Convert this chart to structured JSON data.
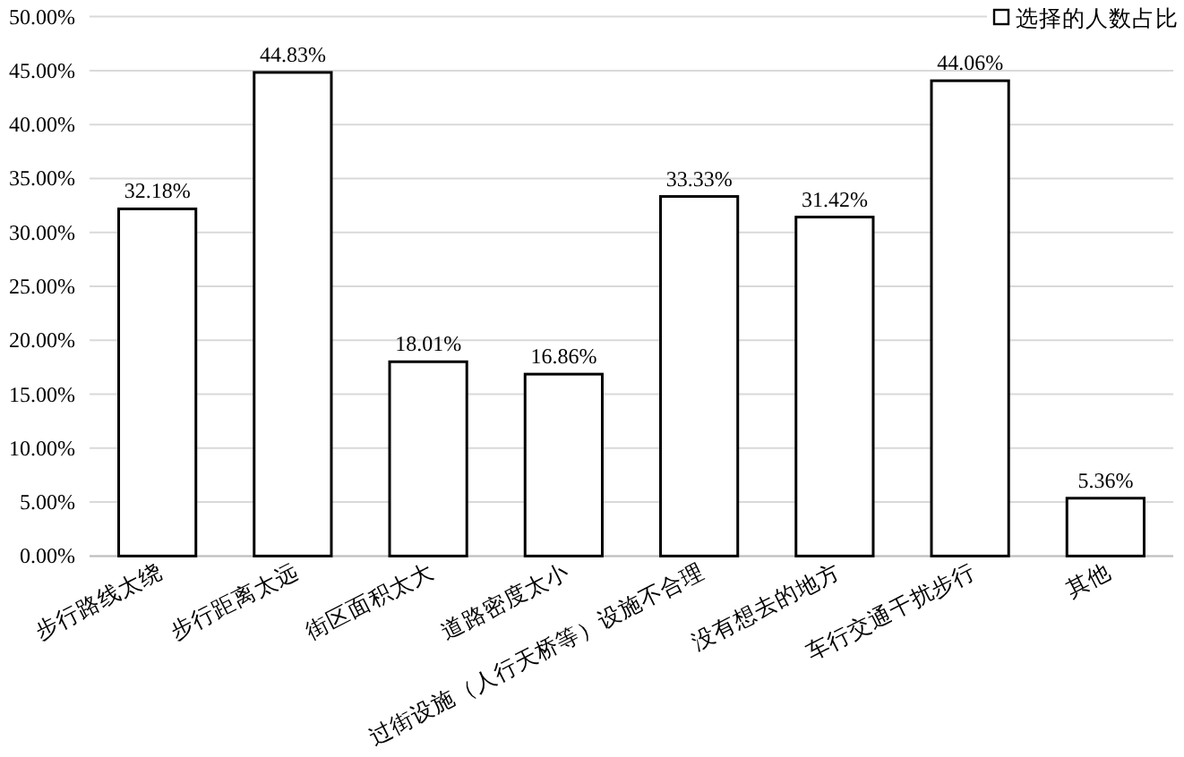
{
  "chart_data": {
    "type": "bar",
    "categories": [
      "步行路线太绕",
      "步行距离太远",
      "街区面积太大",
      "道路密度太小",
      "过街设施（人行天桥等）设施不合理",
      "没有想去的地方",
      "车行交通干扰步行",
      "其他"
    ],
    "series": [
      {
        "name": "选择的人数占比",
        "color": "#ffffff",
        "values": [
          32.18,
          44.83,
          18.01,
          16.86,
          33.33,
          31.42,
          44.06,
          5.36
        ],
        "value_labels": [
          "32.18%",
          "44.83%",
          "18.01%",
          "16.86%",
          "33.33%",
          "31.42%",
          "44.06%",
          "5.36%"
        ]
      }
    ],
    "ylim": [
      0,
      50
    ],
    "yticks": [
      {
        "value": 0,
        "label": "0.00%"
      },
      {
        "value": 5,
        "label": "5.00%"
      },
      {
        "value": 10,
        "label": "10.00%"
      },
      {
        "value": 15,
        "label": "15.00%"
      },
      {
        "value": 20,
        "label": "20.00%"
      },
      {
        "value": 25,
        "label": "25.00%"
      },
      {
        "value": 30,
        "label": "30.00%"
      },
      {
        "value": 35,
        "label": "35.00%"
      },
      {
        "value": 40,
        "label": "40.00%"
      },
      {
        "value": 45,
        "label": "45.00%"
      },
      {
        "value": 50,
        "label": "50.00%"
      }
    ],
    "grid": "y",
    "legend": "top right"
  }
}
